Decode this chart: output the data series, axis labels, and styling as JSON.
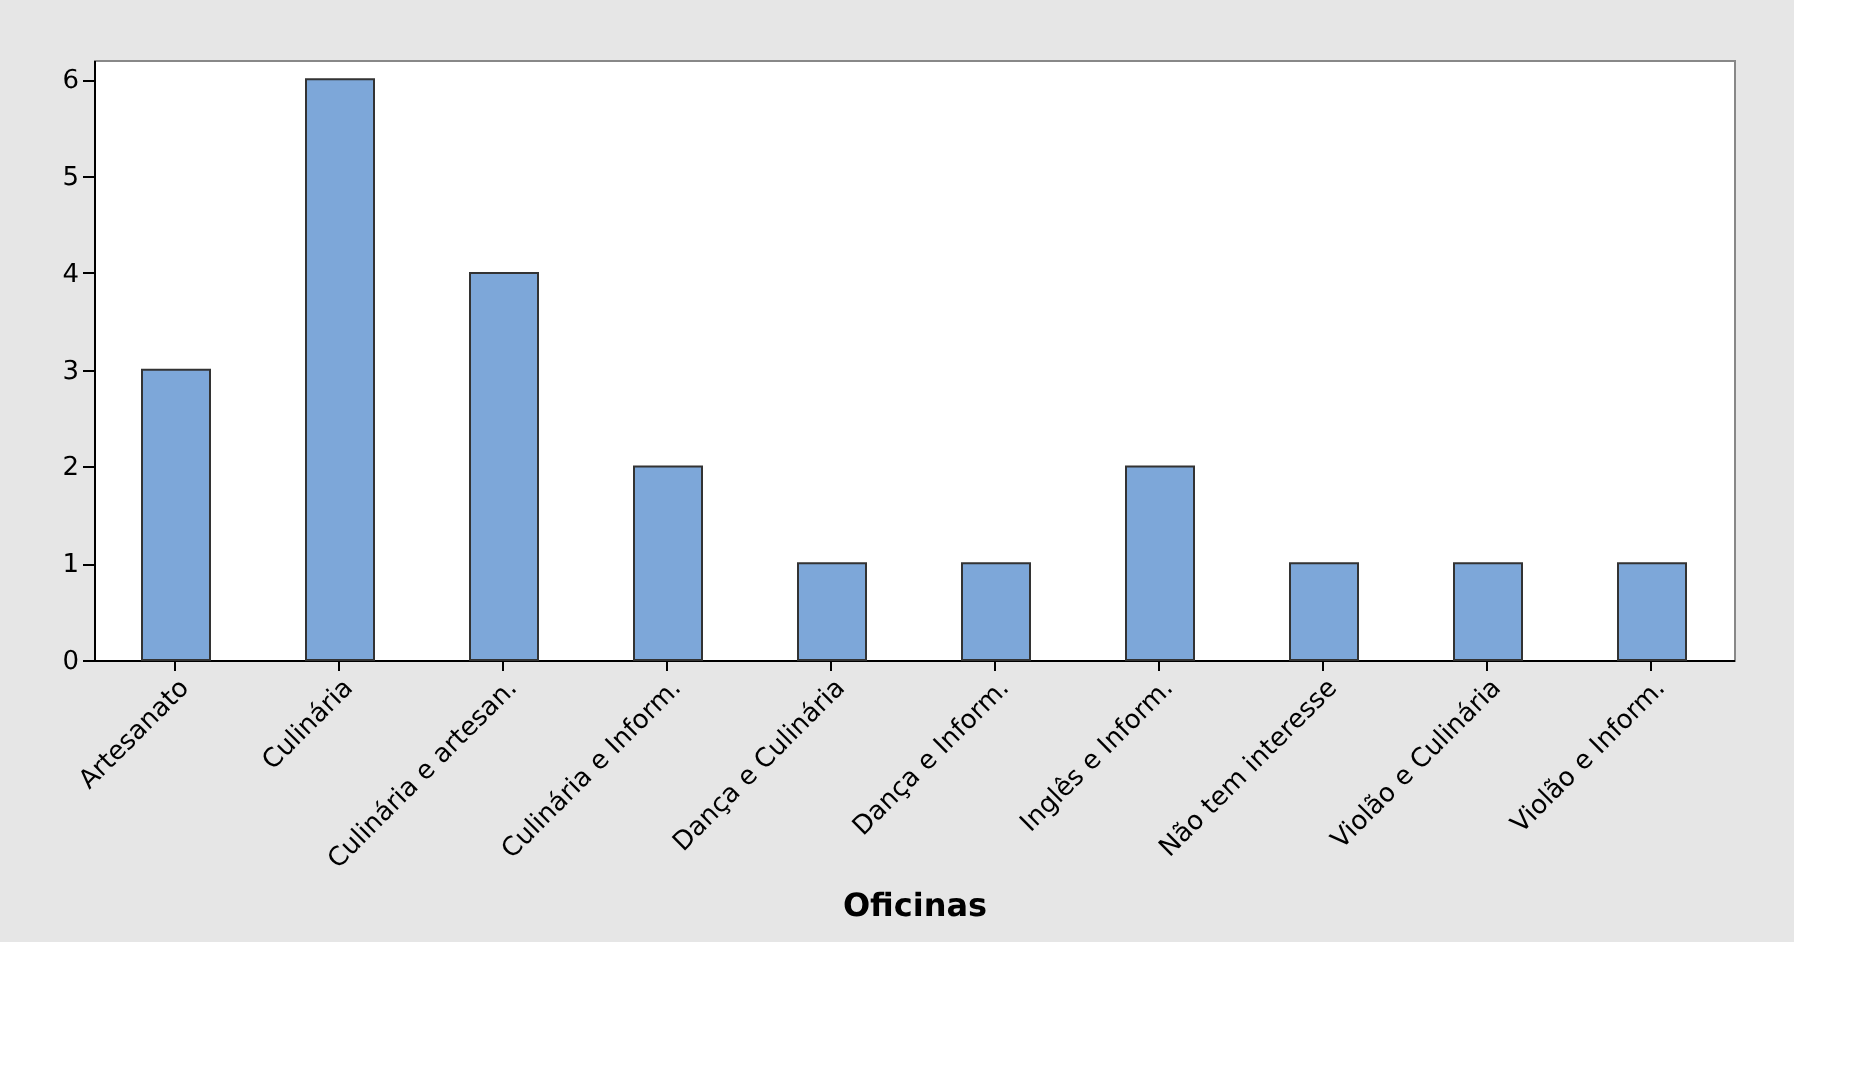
{
  "chart_data": {
    "type": "bar",
    "xlabel": "Oficinas",
    "categories": [
      "Artesanato",
      "Culinária",
      "Culinária e artesan.",
      "Culinária e Inform.",
      "Dança e Culinária",
      "Dança e Inform.",
      "Inglês e Inform.",
      "Não tem interesse",
      "Violão e Culinária",
      "Violão e Inform."
    ],
    "values": [
      3,
      6,
      4,
      2,
      1,
      1,
      2,
      1,
      1,
      1
    ],
    "color": "#7da7d9",
    "ylim": [
      0,
      6.2
    ],
    "yticks": [
      0,
      1,
      2,
      3,
      4,
      5,
      6
    ],
    "grid": false
  }
}
